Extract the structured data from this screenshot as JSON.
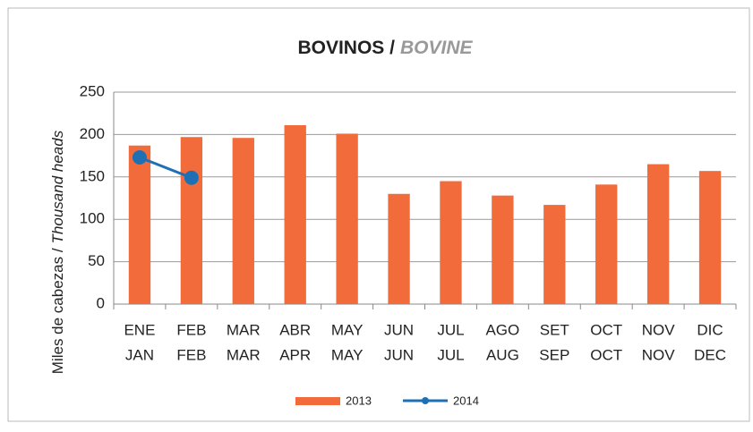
{
  "chart_data": {
    "type": "bar",
    "title": [
      "BOVINOS /",
      "BOVINE"
    ],
    "ylabel": [
      "Miles de cabezas /",
      "Thousand heads"
    ],
    "categories": [
      [
        "ENE",
        "JAN"
      ],
      [
        "FEB",
        "FEB"
      ],
      [
        "MAR",
        "MAR"
      ],
      [
        "ABR",
        "APR"
      ],
      [
        "MAY",
        "MAY"
      ],
      [
        "JUN",
        "JUN"
      ],
      [
        "JUL",
        "JUL"
      ],
      [
        "AGO",
        "AUG"
      ],
      [
        "SET",
        "SEP"
      ],
      [
        "OCT",
        "OCT"
      ],
      [
        "NOV",
        "NOV"
      ],
      [
        "DIC",
        "DEC"
      ]
    ],
    "series": [
      {
        "name": "2013",
        "type": "bar",
        "color": "#f26b3a",
        "values": [
          187,
          197,
          196,
          211,
          201,
          130,
          145,
          128,
          117,
          141,
          165,
          157
        ]
      },
      {
        "name": "2014",
        "type": "line",
        "color": "#1f6fb5",
        "values": [
          173,
          149,
          null,
          null,
          null,
          null,
          null,
          null,
          null,
          null,
          null,
          null
        ]
      }
    ],
    "ylim": [
      0,
      250
    ],
    "yticks": [
      0,
      50,
      100,
      150,
      200,
      250
    ],
    "grid": true,
    "legend": "bottom"
  }
}
